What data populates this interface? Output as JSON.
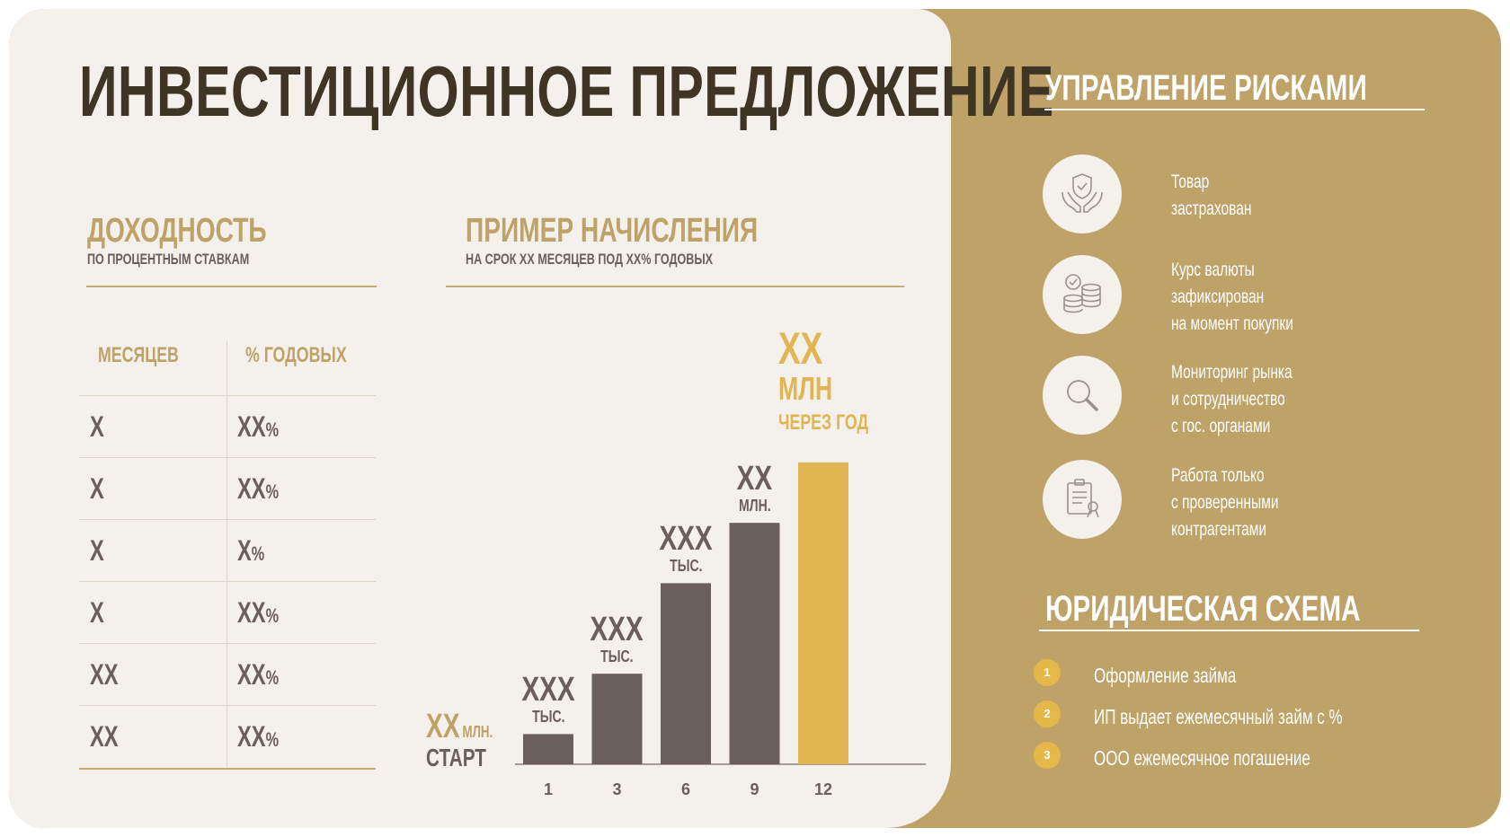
{
  "title": "ИНВЕСТИЦИОННОЕ ПРЕДЛОЖЕНИЕ",
  "yield": {
    "title": "ДОХОДНОСТЬ",
    "subtitle": "ПО ПРОЦЕНТНЫМ СТАВКАМ",
    "headers": [
      "МЕСЯЦЕВ",
      "% ГОДОВЫХ"
    ],
    "rows": [
      {
        "months": "X",
        "rate": "XX",
        "unit": "%"
      },
      {
        "months": "X",
        "rate": "XX",
        "unit": "%"
      },
      {
        "months": "X",
        "rate": "X",
        "unit": "%"
      },
      {
        "months": "X",
        "rate": "XX",
        "unit": "%"
      },
      {
        "months": "XX",
        "rate": "XX",
        "unit": "%"
      },
      {
        "months": "XX",
        "rate": "XX",
        "unit": "%"
      }
    ]
  },
  "example": {
    "title": "ПРИМЕР НАЧИСЛЕНИЯ",
    "subtitle": "НА СРОК ХХ МЕСЯЦЕВ ПОД ХХ% ГОДОВЫХ"
  },
  "chart_data": {
    "type": "bar",
    "categories": [
      "1",
      "3",
      "6",
      "9",
      "12"
    ],
    "values": [
      0.35,
      1.05,
      2.1,
      2.8,
      3.5
    ],
    "value_note": "values are approximate relative bar heights; actual amounts are shown as placeholders",
    "ylim": [
      0,
      3.5
    ],
    "start_label": {
      "value": "XX",
      "unit": "МЛН.",
      "caption": "СТАРТ"
    },
    "bar_labels": [
      {
        "value": "XXX",
        "unit": "ТЫС."
      },
      {
        "value": "XXX",
        "unit": "ТЫС."
      },
      {
        "value": "XXX",
        "unit": "ТЫС."
      },
      {
        "value": "XX",
        "unit": "МЛН."
      },
      {
        "value": "XX",
        "unit": "МЛН",
        "caption": "ЧЕРЕЗ ГОД"
      }
    ],
    "colors": {
      "bar": "#6b5f5b",
      "highlight": "#e0b552",
      "axis": "#8a807a"
    }
  },
  "risks": {
    "title": "УПРАВЛЕНИЕ РИСКАМИ",
    "items": [
      {
        "icon": "shield-hands-icon",
        "lines": [
          "Товар",
          "застрахован"
        ]
      },
      {
        "icon": "coins-check-icon",
        "lines": [
          "Курс валюты",
          "зафиксирован",
          "на момент покупки"
        ]
      },
      {
        "icon": "magnifier-icon",
        "lines": [
          "Мониторинг рынка",
          "и сотрудничество",
          "с гос. органами"
        ]
      },
      {
        "icon": "contract-icon",
        "lines": [
          "Работа только",
          "с проверенными",
          "контрагентами"
        ]
      }
    ]
  },
  "legal": {
    "title": "ЮРИДИЧЕСКАЯ СХЕМА",
    "steps": [
      {
        "num": "1",
        "text": "Оформление займа"
      },
      {
        "num": "2",
        "text": "ИП выдает ежемесячный займ с %"
      },
      {
        "num": "3",
        "text": "ООО ежемесячное погашение"
      }
    ]
  },
  "colors": {
    "gold": "#bfa268",
    "light_bg": "#f4f0ec",
    "dark_text": "#3e3525",
    "bar": "#6b5f5b",
    "highlight": "#e0b552"
  }
}
